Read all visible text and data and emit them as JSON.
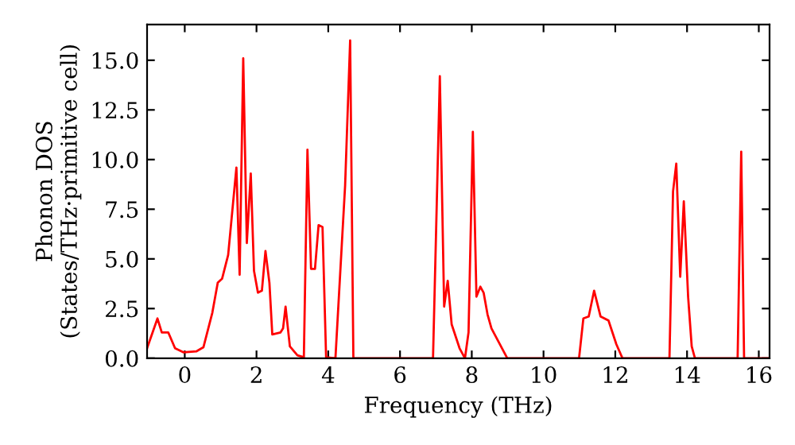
{
  "chart_data": {
    "type": "line",
    "xlabel": "Frequency (THz)",
    "ylabel": "Phonon DOS\n(States/THz·primitive cell)",
    "x": [
      -1.05,
      -0.76,
      -0.64,
      -0.46,
      -0.27,
      -0.04,
      0.33,
      0.52,
      0.77,
      0.92,
      1.04,
      1.21,
      1.44,
      1.53,
      1.63,
      1.73,
      1.84,
      1.93,
      2.04,
      2.15,
      2.25,
      2.36,
      2.44,
      2.67,
      2.74,
      2.81,
      2.93,
      3.14,
      3.32,
      3.42,
      3.52,
      3.63,
      3.73,
      3.84,
      3.94,
      4.2,
      4.47,
      4.61,
      4.7,
      6.92,
      7.11,
      7.23,
      7.33,
      7.44,
      7.66,
      7.81,
      7.91,
      8.03,
      8.13,
      8.24,
      8.33,
      8.44,
      8.55,
      8.99,
      10.99,
      11.11,
      11.26,
      11.41,
      11.59,
      11.81,
      12.03,
      12.2,
      13.51,
      13.61,
      13.7,
      13.81,
      13.91,
      14.03,
      14.13,
      14.22,
      15.41,
      15.51,
      15.59,
      16.3
    ],
    "series": [
      {
        "color": "#ff0000",
        "values": [
          0.5,
          2.0,
          1.3,
          1.3,
          0.5,
          0.3,
          0.35,
          0.55,
          2.3,
          3.8,
          4.0,
          5.2,
          9.6,
          4.2,
          15.1,
          5.8,
          9.3,
          4.4,
          3.3,
          3.4,
          5.4,
          3.8,
          1.2,
          1.3,
          1.5,
          2.6,
          0.6,
          0.15,
          0.05,
          10.5,
          4.5,
          4.5,
          6.7,
          6.6,
          0.05,
          0,
          8.7,
          16.0,
          0,
          0,
          14.2,
          2.6,
          3.9,
          1.7,
          0.5,
          0,
          1.3,
          11.4,
          3.1,
          3.6,
          3.3,
          2.2,
          1.5,
          0,
          0,
          2.0,
          2.1,
          3.4,
          2.1,
          1.9,
          0.7,
          0,
          0,
          8.4,
          9.8,
          4.1,
          7.9,
          3.1,
          0.6,
          0,
          0,
          10.4,
          0,
          0
        ]
      }
    ],
    "xlim": [
      -1.05,
      16.3
    ],
    "ylim": [
      0,
      16.8
    ],
    "xticks": [
      0,
      2,
      4,
      6,
      8,
      10,
      12,
      14,
      16
    ],
    "yticks": [
      {
        "value": 0,
        "label": "0.0"
      },
      {
        "value": 2.5,
        "label": "2.5"
      },
      {
        "value": 5,
        "label": "5.0"
      },
      {
        "value": 7.5,
        "label": "7.5"
      },
      {
        "value": 10,
        "label": "10.0"
      },
      {
        "value": 12.5,
        "label": "12.5"
      },
      {
        "value": 15,
        "label": "15.0"
      }
    ],
    "grid": false,
    "legend": false,
    "marker": "none",
    "line_style": "solid"
  }
}
